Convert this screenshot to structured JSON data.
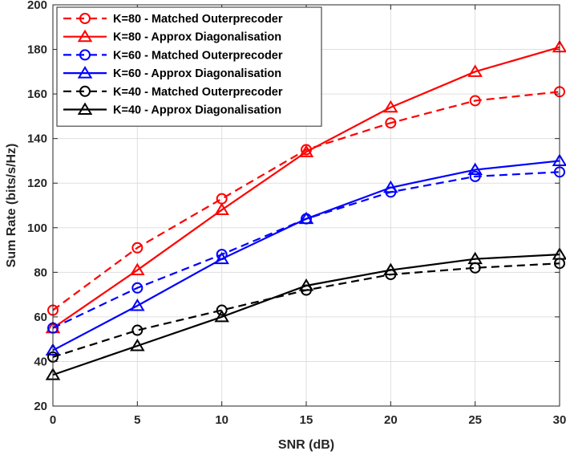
{
  "chart_data": {
    "type": "line",
    "title": "",
    "xlabel": "SNR (dB)",
    "ylabel": "Sum Rate (bits/s/Hz)",
    "xlim": [
      0,
      30
    ],
    "ylim": [
      20,
      200
    ],
    "xticks": [
      0,
      5,
      10,
      15,
      20,
      25,
      30
    ],
    "yticks": [
      20,
      40,
      60,
      80,
      100,
      120,
      140,
      160,
      180,
      200
    ],
    "grid": true,
    "legend_position": "top-left",
    "x": [
      0,
      5,
      10,
      15,
      20,
      25,
      30
    ],
    "series": [
      {
        "name": "K=80 - Matched Outerprecoder",
        "color": "#ff0000",
        "dash": "dashed",
        "marker": "circle",
        "values": [
          63,
          91,
          113,
          135,
          147,
          157,
          161
        ]
      },
      {
        "name": "K=80 - Approx Diagonalisation",
        "color": "#ff0000",
        "dash": "solid",
        "marker": "triangle",
        "values": [
          55,
          81,
          108,
          134,
          154,
          170,
          181
        ]
      },
      {
        "name": "K=60 - Matched Outerprecoder",
        "color": "#0000ff",
        "dash": "dashed",
        "marker": "circle",
        "values": [
          55,
          73,
          88,
          104,
          116,
          123,
          125
        ]
      },
      {
        "name": "K=60 - Approx Diagonalisation",
        "color": "#0000ff",
        "dash": "solid",
        "marker": "triangle",
        "values": [
          45,
          65,
          86,
          104,
          118,
          126,
          130
        ]
      },
      {
        "name": "K=40 - Matched Outerprecoder",
        "color": "#000000",
        "dash": "dashed",
        "marker": "circle",
        "values": [
          42,
          54,
          63,
          72,
          79,
          82,
          84
        ]
      },
      {
        "name": "K=40 - Approx Diagonalisation",
        "color": "#000000",
        "dash": "solid",
        "marker": "triangle",
        "values": [
          34,
          47,
          60,
          74,
          81,
          86,
          88
        ]
      }
    ]
  }
}
